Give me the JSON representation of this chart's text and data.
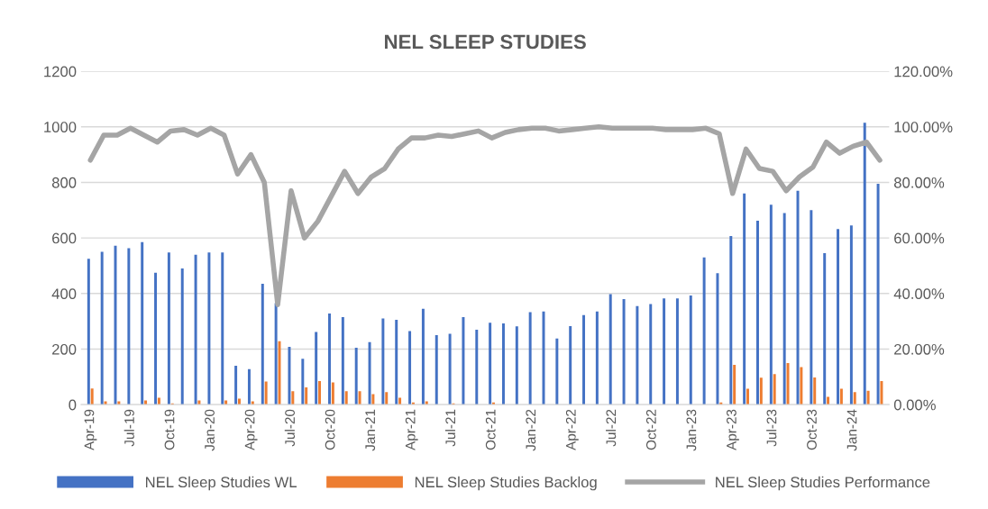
{
  "chart_data": {
    "type": "bar",
    "title": "NEL SLEEP STUDIES",
    "categories": [
      "Apr-19",
      null,
      null,
      "Jul-19",
      null,
      null,
      "Oct-19",
      null,
      null,
      "Jan-20",
      null,
      null,
      "Apr-20",
      null,
      null,
      "Jul-20",
      null,
      null,
      "Oct-20",
      null,
      null,
      "Jan-21",
      null,
      null,
      "Apr-21",
      null,
      null,
      "Jul-21",
      null,
      null,
      "Oct-21",
      null,
      null,
      "Jan-22",
      null,
      null,
      "Apr-22",
      null,
      null,
      "Jul-22",
      null,
      null,
      "Oct-22",
      null,
      null,
      "Jan-23",
      null,
      null,
      "Apr-23",
      null,
      null,
      "Jul-23",
      null,
      null,
      "Oct-23",
      null,
      null,
      "Jan-24",
      null,
      null
    ],
    "series": [
      {
        "name": "NEL Sleep Studies WL",
        "color": "#4472c4",
        "values": [
          525,
          550,
          572,
          563,
          585,
          475,
          548,
          490,
          540,
          548,
          548,
          140,
          128,
          435,
          365,
          208,
          165,
          262,
          328,
          315,
          205,
          225,
          310,
          305,
          265,
          345,
          250,
          255,
          315,
          270,
          295,
          292,
          282,
          333,
          335,
          238,
          283,
          322,
          335,
          398,
          380,
          355,
          362,
          382,
          382,
          393,
          530,
          473,
          607,
          760,
          662,
          720,
          690,
          770,
          700,
          545,
          632,
          645,
          1015,
          795
        ]
      },
      {
        "name": "NEL Sleep Studies Backlog",
        "color": "#ed7d31",
        "values": [
          58,
          12,
          12,
          0,
          15,
          25,
          5,
          0,
          15,
          0,
          15,
          22,
          12,
          83,
          228,
          48,
          62,
          85,
          80,
          48,
          48,
          38,
          45,
          25,
          8,
          12,
          0,
          5,
          0,
          0,
          8,
          0,
          0,
          0,
          0,
          0,
          0,
          0,
          0,
          0,
          0,
          0,
          0,
          0,
          0,
          0,
          0,
          8,
          143,
          57,
          97,
          110,
          150,
          135,
          98,
          28,
          57,
          45,
          50,
          85
        ]
      },
      {
        "name": "NEL Sleep Studies Performance",
        "type": "line",
        "axis": "y2",
        "color": "#a5a5a5",
        "values": [
          88,
          97,
          97,
          99.5,
          97,
          94.5,
          98.5,
          99,
          97,
          99.5,
          97,
          83,
          90,
          80,
          36,
          77,
          60,
          66,
          75,
          84,
          76,
          82,
          85,
          92,
          96,
          96,
          97,
          96.5,
          97.5,
          98.5,
          96,
          98,
          99,
          99.5,
          99.5,
          98.5,
          99,
          99.5,
          100,
          99.5,
          99.5,
          99.5,
          99.5,
          99,
          99,
          99,
          99.5,
          97.5,
          76,
          92,
          85,
          84,
          77,
          82,
          85.5,
          94.5,
          90.5,
          93,
          94.5,
          88
        ]
      }
    ],
    "ylim": [
      0,
      1200
    ],
    "yticks": [
      0,
      200,
      400,
      600,
      800,
      1000,
      1200
    ],
    "y2lim": [
      0,
      120
    ],
    "y2ticks": [
      {
        "value": 0,
        "label": "0.00%"
      },
      {
        "value": 20,
        "label": "20.00%"
      },
      {
        "value": 40,
        "label": "40.00%"
      },
      {
        "value": 60,
        "label": "60.00%"
      },
      {
        "value": 80,
        "label": "80.00%"
      },
      {
        "value": 100,
        "label": "100.00%"
      },
      {
        "value": 120,
        "label": "120.00%"
      }
    ],
    "grid": "y",
    "legend": "bottom",
    "marker": "none",
    "line_style": "solid"
  }
}
